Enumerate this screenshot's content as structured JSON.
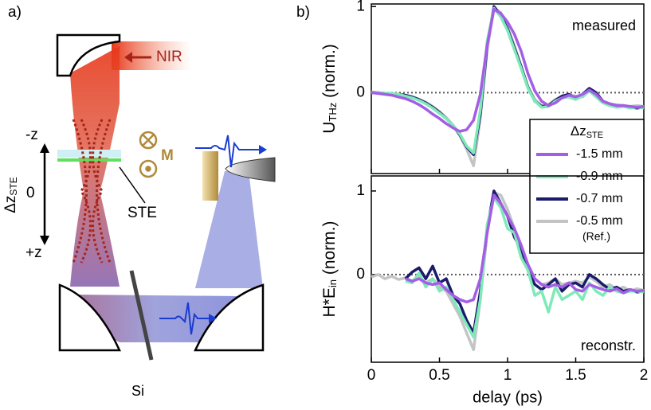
{
  "diagram": {
    "panel_label": "a)",
    "nir": "NIR",
    "minus_z": "-z",
    "zero": "0",
    "plus_z": "+z",
    "dz": "Δz",
    "dz_sub": "STE",
    "ste": "STE",
    "m": "M",
    "si": "Si"
  },
  "panel_label": "b)",
  "chart_data": [
    {
      "type": "line",
      "ylabel": {
        "main": "U",
        "sub": "THz",
        "rest": " (norm.)"
      },
      "annotation": "measured",
      "legend_title": {
        "main": "Δz",
        "sub": "STE"
      },
      "legend_note": "(Ref.)",
      "legend": "lower right",
      "x": [
        0,
        0.05,
        0.1,
        0.15,
        0.2,
        0.25,
        0.3,
        0.35,
        0.4,
        0.45,
        0.5,
        0.55,
        0.6,
        0.65,
        0.7,
        0.75,
        0.8,
        0.85,
        0.9,
        0.95,
        1,
        1.05,
        1.1,
        1.15,
        1.2,
        1.25,
        1.3,
        1.35,
        1.4,
        1.45,
        1.5,
        1.55,
        1.6,
        1.65,
        1.7,
        1.75,
        1.8,
        1.85,
        1.9,
        1.95,
        2
      ],
      "xlim": [
        0,
        2
      ],
      "xticks": [
        0,
        0.5,
        1,
        1.5,
        2
      ],
      "ylim": [
        -0.94,
        1.03
      ],
      "yticks": [
        0,
        1
      ],
      "series": [
        {
          "name": "-1.5 mm",
          "color": "#a45ee5",
          "values": [
            0,
            -0.01,
            -0.02,
            -0.03,
            -0.05,
            -0.07,
            -0.1,
            -0.14,
            -0.19,
            -0.25,
            -0.3,
            -0.36,
            -0.41,
            -0.45,
            -0.43,
            -0.32,
            -0.02,
            0.55,
            0.97,
            0.92,
            0.82,
            0.68,
            0.48,
            0.22,
            0.02,
            -0.1,
            -0.15,
            -0.12,
            -0.06,
            -0.03,
            -0.05,
            -0.02,
            0.03,
            -0.02,
            -0.1,
            -0.13,
            -0.15,
            -0.15,
            -0.16,
            -0.17,
            -0.16
          ]
        },
        {
          "name": "-0.9 mm",
          "color": "#7eeab8",
          "values": [
            0,
            0,
            -0.01,
            -0.01,
            -0.02,
            -0.04,
            -0.06,
            -0.09,
            -0.13,
            -0.18,
            -0.24,
            -0.3,
            -0.38,
            -0.48,
            -0.62,
            -0.7,
            -0.2,
            0.6,
            0.98,
            0.88,
            0.72,
            0.5,
            0.28,
            0.05,
            -0.1,
            -0.17,
            -0.16,
            -0.1,
            -0.06,
            -0.05,
            -0.08,
            -0.04,
            0.02,
            -0.05,
            -0.12,
            -0.15,
            -0.17,
            -0.16,
            -0.18,
            -0.17,
            -0.18
          ]
        },
        {
          "name": "-0.7 mm",
          "color": "#1b1b6b",
          "values": [
            0,
            0,
            -0.01,
            -0.02,
            -0.02,
            -0.03,
            -0.05,
            -0.08,
            -0.12,
            -0.17,
            -0.23,
            -0.3,
            -0.38,
            -0.49,
            -0.63,
            -0.72,
            -0.25,
            0.55,
            1,
            0.9,
            0.74,
            0.52,
            0.3,
            0.06,
            -0.1,
            -0.16,
            -0.15,
            -0.09,
            -0.04,
            -0.02,
            -0.06,
            -0.02,
            0.05,
            0.0,
            -0.1,
            -0.14,
            -0.16,
            -0.15,
            -0.17,
            -0.18,
            -0.17
          ]
        },
        {
          "name": "-0.5 mm",
          "color": "#c2c4c6",
          "values": [
            0.01,
            0,
            -0.01,
            -0.01,
            -0.02,
            -0.03,
            -0.05,
            -0.08,
            -0.11,
            -0.16,
            -0.22,
            -0.29,
            -0.38,
            -0.5,
            -0.66,
            -0.85,
            -0.3,
            0.5,
            0.98,
            0.93,
            0.76,
            0.55,
            0.3,
            0.07,
            -0.08,
            -0.15,
            -0.14,
            -0.08,
            -0.04,
            -0.03,
            -0.04,
            -0.05,
            0.02,
            -0.03,
            -0.1,
            -0.13,
            -0.14,
            -0.15,
            -0.16,
            -0.15,
            -0.16
          ]
        }
      ]
    },
    {
      "type": "line",
      "ylabel": {
        "main": "H*E",
        "sub": "in",
        "rest": " (norm.)"
      },
      "xlabel": "delay (ps)",
      "annotation": "reconstr.",
      "x": [
        0,
        0.05,
        0.1,
        0.15,
        0.2,
        0.25,
        0.3,
        0.35,
        0.4,
        0.45,
        0.5,
        0.55,
        0.6,
        0.65,
        0.7,
        0.75,
        0.8,
        0.85,
        0.9,
        0.95,
        1,
        1.05,
        1.1,
        1.15,
        1.2,
        1.25,
        1.3,
        1.35,
        1.4,
        1.45,
        1.5,
        1.55,
        1.6,
        1.65,
        1.7,
        1.75,
        1.8,
        1.85,
        1.9,
        1.95,
        2
      ],
      "xlim": [
        0,
        2
      ],
      "xticks": [
        0,
        0.5,
        1,
        1.5,
        2
      ],
      "ylim": [
        -1.05,
        1.18
      ],
      "yticks": [
        0,
        1
      ],
      "series": [
        {
          "color": "#a45ee5",
          "values": [
            null,
            null,
            null,
            null,
            null,
            -0.05,
            -0.08,
            -0.05,
            -0.1,
            -0.12,
            -0.1,
            -0.18,
            -0.25,
            -0.3,
            -0.33,
            -0.3,
            -0.05,
            0.5,
            0.95,
            0.85,
            0.7,
            0.55,
            0.35,
            0.12,
            -0.05,
            -0.12,
            -0.15,
            -0.12,
            -0.15,
            -0.1,
            -0.18,
            -0.2,
            -0.12,
            -0.15,
            -0.18,
            -0.2,
            -0.17,
            -0.22,
            -0.18,
            -0.2,
            -0.19
          ]
        },
        {
          "color": "#7eeab8",
          "values": [
            null,
            null,
            null,
            null,
            null,
            -0.08,
            -0.1,
            0.02,
            -0.15,
            -0.05,
            -0.2,
            -0.15,
            -0.3,
            -0.45,
            -0.6,
            -0.75,
            -0.3,
            0.6,
            0.92,
            0.8,
            0.55,
            0.5,
            0.2,
            0.05,
            -0.25,
            -0.2,
            -0.45,
            -0.15,
            -0.3,
            -0.25,
            -0.2,
            -0.3,
            -0.1,
            -0.2,
            -0.25,
            -0.15,
            -0.2,
            -0.22,
            -0.2,
            -0.2,
            -0.21
          ]
        },
        {
          "color": "#1b1b6b",
          "values": [
            null,
            null,
            null,
            null,
            null,
            -0.05,
            0.03,
            0.08,
            -0.05,
            0.1,
            -0.1,
            -0.05,
            -0.25,
            -0.35,
            -0.55,
            -0.7,
            -0.2,
            0.55,
            1,
            0.85,
            0.7,
            0.45,
            0.3,
            0.05,
            -0.12,
            -0.18,
            -0.12,
            -0.05,
            -0.2,
            -0.12,
            -0.1,
            -0.15,
            0.0,
            -0.05,
            -0.12,
            -0.18,
            -0.15,
            -0.2,
            -0.18,
            -0.21,
            -0.2
          ]
        },
        {
          "color": "#c2c4c6",
          "values": [
            -0.03,
            0,
            -0.05,
            -0.02,
            -0.06,
            -0.04,
            -0.08,
            -0.02,
            -0.1,
            -0.05,
            -0.15,
            -0.2,
            -0.35,
            -0.5,
            -0.7,
            -0.9,
            -0.3,
            0.5,
            0.98,
            0.95,
            0.78,
            0.55,
            0.32,
            0.1,
            -0.05,
            -0.12,
            -0.1,
            -0.05,
            -0.12,
            -0.1,
            -0.08,
            -0.1,
            -0.03,
            -0.08,
            -0.15,
            -0.12,
            -0.18,
            -0.15,
            -0.2,
            -0.17,
            -0.19
          ]
        }
      ]
    }
  ]
}
